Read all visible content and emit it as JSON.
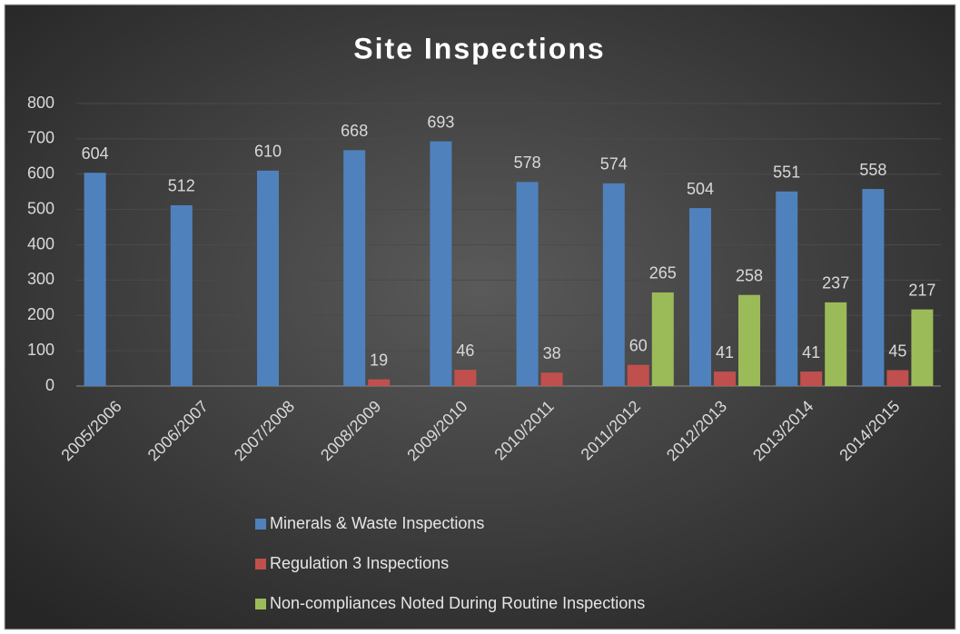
{
  "chart_data": {
    "type": "bar",
    "title": "Site Inspections",
    "categories": [
      "2005/2006",
      "2006/2007",
      "2007/2008",
      "2008/2009",
      "2009/2010",
      "2010/2011",
      "2011/2012",
      "2012/2013",
      "2013/2014",
      "2014/2015"
    ],
    "series": [
      {
        "name": "Minerals & Waste Inspections",
        "color": "#4f81bd",
        "values": [
          604,
          512,
          610,
          668,
          693,
          578,
          574,
          504,
          551,
          558
        ]
      },
      {
        "name": "Regulation 3 Inspections",
        "color": "#c0504d",
        "values": [
          null,
          null,
          null,
          19,
          46,
          38,
          60,
          41,
          41,
          45
        ]
      },
      {
        "name": "Non-compliances Noted During Routine Inspections",
        "color": "#9bbb59",
        "values": [
          null,
          null,
          null,
          null,
          null,
          null,
          265,
          258,
          237,
          217
        ]
      }
    ],
    "ylim": [
      0,
      800
    ],
    "yticks": [
      0,
      100,
      200,
      300,
      400,
      500,
      600,
      700,
      800
    ],
    "grid": true,
    "legend": "bottom"
  }
}
